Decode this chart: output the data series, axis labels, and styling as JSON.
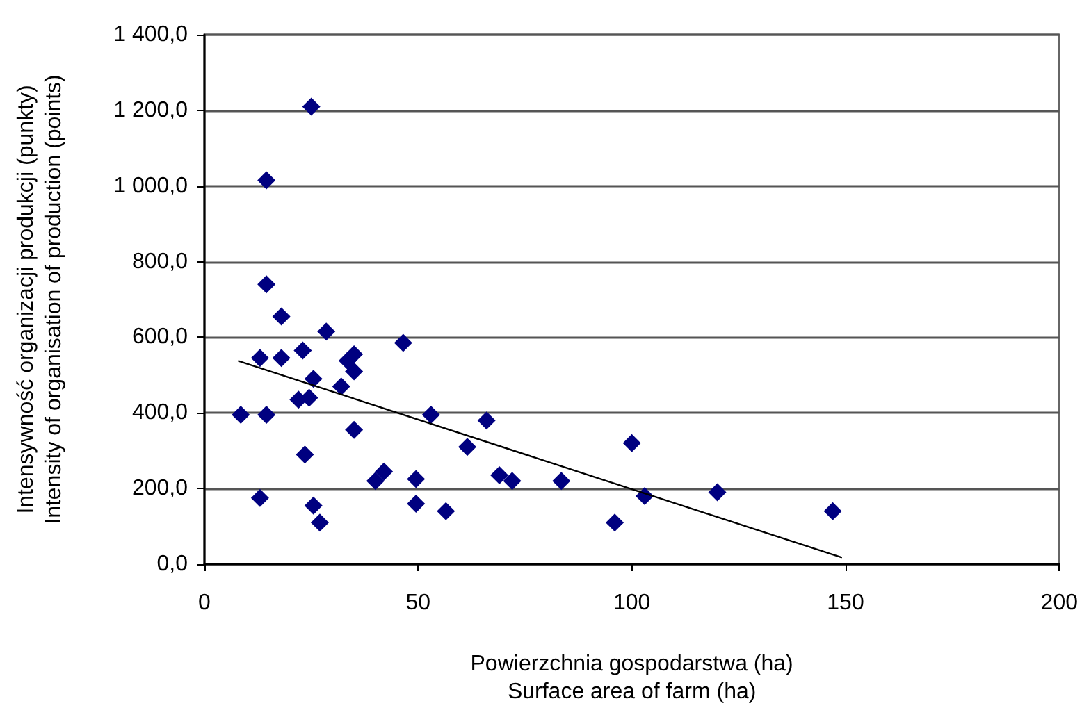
{
  "chart_data": {
    "type": "scatter",
    "xlabel": "Powierzchnia gospodarstwa (ha)\nSurface area of farm (ha)",
    "ylabel": "Intensywność organizacji produkcji (punkty)\nIntensity of organisation of production (points)",
    "xlim": [
      0,
      200
    ],
    "xticks": [
      0,
      50,
      100,
      150,
      200
    ],
    "ylim": [
      0,
      1400
    ],
    "yticks": [
      {
        "value": 0,
        "label": "0,0"
      },
      {
        "value": 200,
        "label": "200,0"
      },
      {
        "value": 400,
        "label": "400,0"
      },
      {
        "value": 600,
        "label": "600,0"
      },
      {
        "value": 800,
        "label": "800,0"
      },
      {
        "value": 1000,
        "label": "1 000,0"
      },
      {
        "value": 1200,
        "label": "1 200,0"
      },
      {
        "value": 1400,
        "label": "1 400,0"
      }
    ],
    "grid": "y",
    "series": [
      {
        "color": "#000080",
        "marker": "diamond",
        "x": [
          25,
          14.5,
          14.5,
          18,
          28.5,
          13,
          18,
          23,
          46.5,
          33.5,
          35,
          35,
          25.5,
          32,
          22,
          24.5,
          8.5,
          14.5,
          53,
          66,
          35,
          23.5,
          61.5,
          100,
          42,
          40,
          49.5,
          69,
          72,
          83.5,
          13,
          25.5,
          49.5,
          56.5,
          27,
          96,
          103,
          120,
          147
        ],
        "values": [
          1210,
          1015,
          740,
          655,
          615,
          545,
          545,
          565,
          585,
          538,
          555,
          510,
          490,
          470,
          435,
          440,
          395,
          395,
          395,
          380,
          355,
          290,
          310,
          320,
          245,
          220,
          225,
          235,
          220,
          220,
          175,
          155,
          160,
          140,
          110,
          110,
          180,
          190,
          140
        ]
      },
      {
        "type": "line",
        "color": "#000000",
        "marker": "none",
        "line_style": "solid",
        "x": [
          8,
          149
        ],
        "values": [
          537,
          18
        ]
      }
    ]
  }
}
